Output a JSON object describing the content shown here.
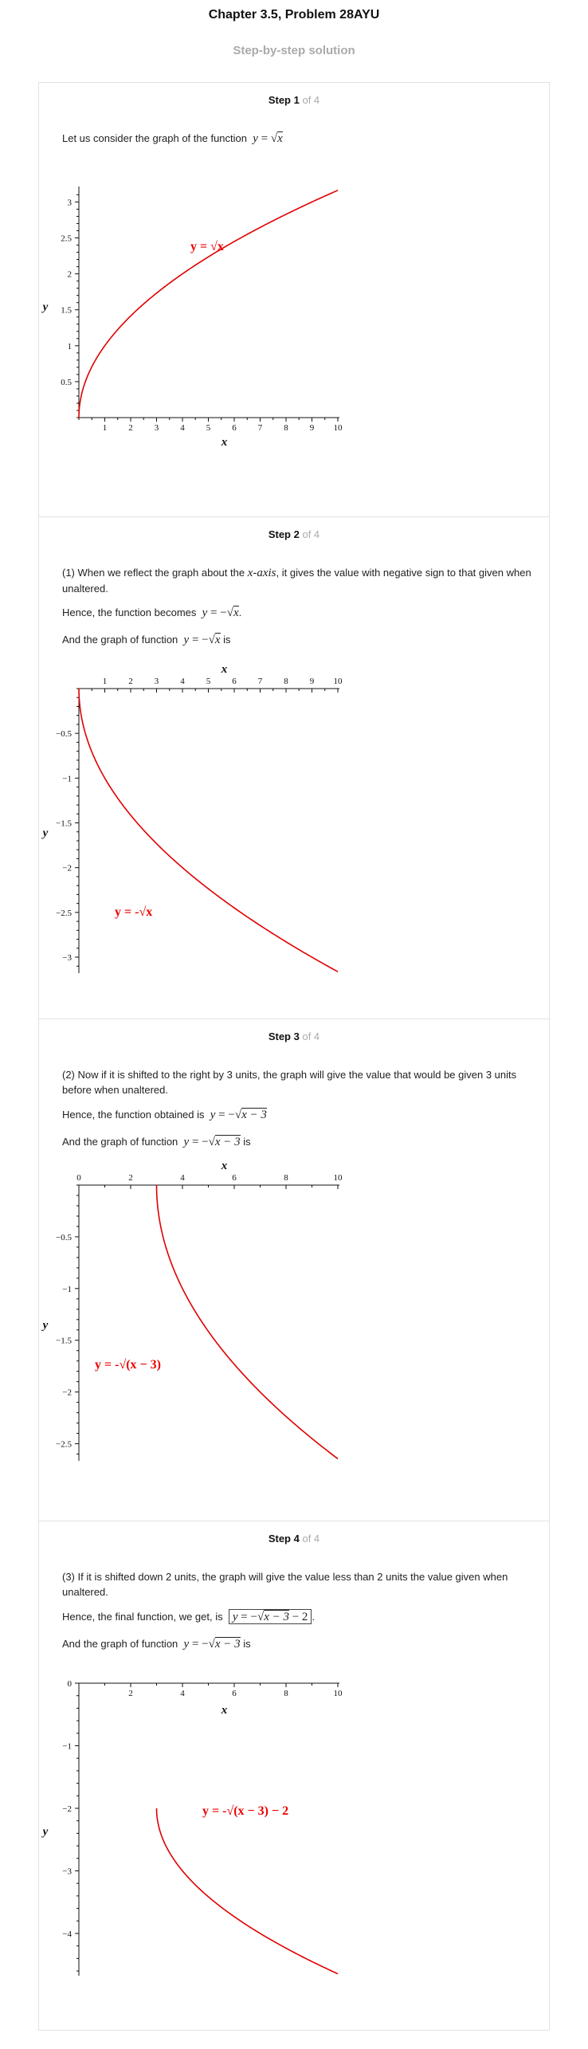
{
  "page": {
    "title": "Chapter 3.5, Problem 28AYU",
    "subtitle": "Step-by-step solution"
  },
  "steps": [
    {
      "label": "Step 1",
      "of": "of 4",
      "text1": "Let us consider the graph of the function",
      "formula1": "y = √x"
    },
    {
      "label": "Step 2",
      "of": "of 4",
      "text1a": "(1) When we reflect the graph about the",
      "text1b": "x-axis",
      "text1c": ", it gives the value with negative sign to that given when unaltered.",
      "text2": "Hence, the function becomes",
      "text3a": "And the graph of function",
      "text3b": "is"
    },
    {
      "label": "Step 3",
      "of": "of 4",
      "text1": "(2) Now if it is shifted to the right by 3 units, the graph will give the value that would be given 3 units before when unaltered.",
      "text2": "Hence, the function obtained is",
      "text3a": "And the graph of function",
      "text3b": "is"
    },
    {
      "label": "Step 4",
      "of": "of 4",
      "text1": "(3) If it is shifted down 2 units, the graph will give the value less than 2 units the value given when unaltered.",
      "text2": "Hence, the final function, we get, is",
      "text3a": "And the graph of function",
      "text3b": "is"
    }
  ],
  "chart_data": [
    {
      "type": "line",
      "function": "y = sqrt(x)",
      "x": [
        0,
        0.25,
        0.5,
        1,
        2,
        3,
        4,
        5,
        6,
        7,
        8,
        9,
        10
      ],
      "y": [
        0,
        0.5,
        0.707,
        1,
        1.414,
        1.732,
        2,
        2.236,
        2.449,
        2.646,
        2.828,
        3,
        3.162
      ],
      "xlabel": "x",
      "ylabel": "y",
      "xticks": [
        "1",
        "2",
        "3",
        "4",
        "5",
        "6",
        "7",
        "8",
        "9",
        "10"
      ],
      "yticks": [
        "0.5",
        "1",
        "1.5",
        "2",
        "2.5",
        "3"
      ],
      "xlim": [
        0,
        10
      ],
      "ylim": [
        0,
        3.16
      ],
      "curve_label": "y = √x",
      "color": "#e00000"
    },
    {
      "type": "line",
      "function": "y = -sqrt(x)",
      "x": [
        0,
        0.25,
        0.5,
        1,
        2,
        3,
        4,
        5,
        6,
        7,
        8,
        9,
        10
      ],
      "y": [
        0,
        -0.5,
        -0.707,
        -1,
        -1.414,
        -1.732,
        -2,
        -2.236,
        -2.449,
        -2.646,
        -2.828,
        -3,
        -3.162
      ],
      "xlabel": "x",
      "ylabel": "y",
      "xticks": [
        "1",
        "2",
        "3",
        "4",
        "5",
        "6",
        "7",
        "8",
        "9",
        "10"
      ],
      "yticks": [
        "-0.5",
        "-1",
        "-1.5",
        "-2",
        "-2.5",
        "-3"
      ],
      "xlim": [
        0,
        10
      ],
      "ylim": [
        -3.16,
        0
      ],
      "curve_label": "y = -√x",
      "color": "#e00000"
    },
    {
      "type": "line",
      "function": "y = -sqrt(x-3)",
      "x": [
        3,
        3.25,
        3.5,
        4,
        5,
        6,
        7,
        8,
        9,
        10
      ],
      "y": [
        0,
        -0.5,
        -0.707,
        -1,
        -1.414,
        -1.732,
        -2,
        -2.236,
        -2.449,
        -2.646
      ],
      "xlabel": "x",
      "ylabel": "y",
      "xticks": [
        "0",
        "2",
        "4",
        "6",
        "8",
        "10"
      ],
      "yticks": [
        "-0.5",
        "-1",
        "-1.5",
        "-2",
        "-2.5"
      ],
      "xlim": [
        0,
        10
      ],
      "ylim": [
        -2.65,
        0
      ],
      "curve_label": "y = -√(x − 3)",
      "color": "#e00000"
    },
    {
      "type": "line",
      "function": "y = -sqrt(x-3) - 2",
      "x": [
        3,
        3.25,
        3.5,
        4,
        5,
        6,
        7,
        8,
        9,
        10
      ],
      "y": [
        -2,
        -2.5,
        -2.707,
        -3,
        -3.414,
        -3.732,
        -4,
        -4.236,
        -4.449,
        -4.646
      ],
      "xlabel": "x",
      "ylabel": "y",
      "xticks": [
        "2",
        "4",
        "6",
        "8",
        "10"
      ],
      "yticks": [
        "0",
        "-1",
        "-2",
        "-3",
        "-4"
      ],
      "xlim": [
        0,
        10
      ],
      "ylim": [
        -4.65,
        0
      ],
      "curve_label": "y = -√(x − 3) − 2",
      "color": "#e00000"
    }
  ]
}
